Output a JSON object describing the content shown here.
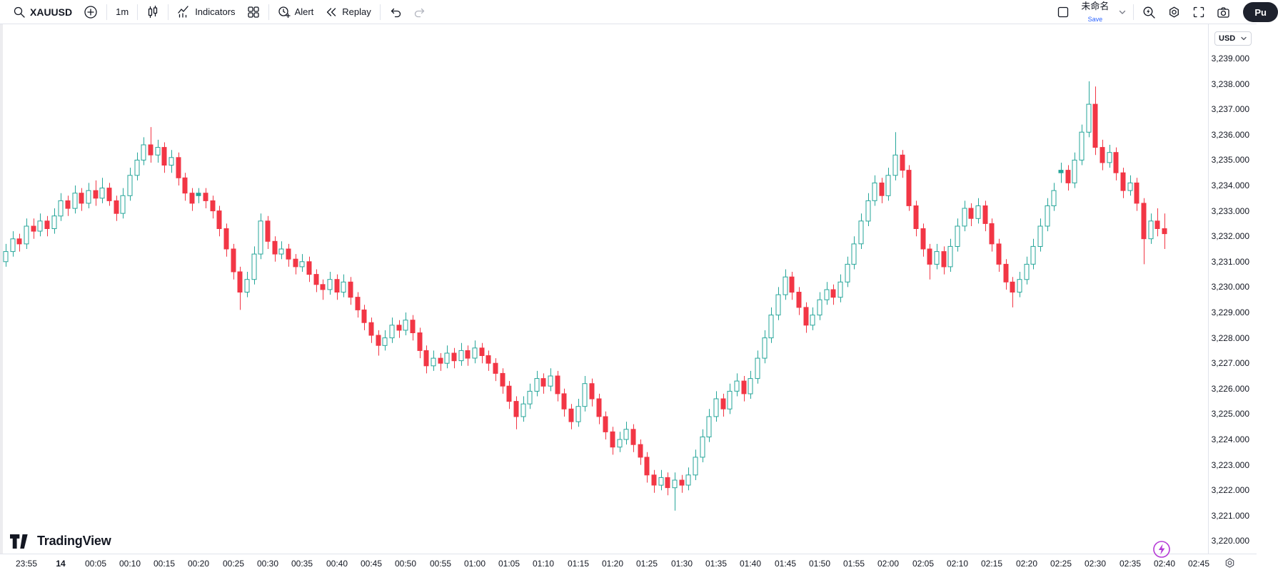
{
  "toolbar": {
    "symbol": "XAUUSD",
    "interval": "1m",
    "indicators_label": "Indicators",
    "alert_label": "Alert",
    "replay_label": "Replay",
    "layout_name": "未命名",
    "save_label": "Save",
    "publish_label": "Pu",
    "left_icons": [
      "search-icon",
      "plus-circle-icon",
      "candle-style-icon",
      "indicators-icon",
      "grid-layout-icon",
      "alert-clock-icon",
      "replay-icon",
      "undo-icon",
      "redo-icon"
    ],
    "right_icons": [
      "square-icon",
      "chevron-down-icon",
      "quick-search-icon",
      "gear-icon",
      "fullscreen-icon",
      "camera-icon"
    ]
  },
  "price_axis": {
    "currency": "USD",
    "labels": [
      "3,239.000",
      "3,238.000",
      "3,237.000",
      "3,236.000",
      "3,235.000",
      "3,234.000",
      "3,233.000",
      "3,232.000",
      "3,231.000",
      "3,230.000",
      "3,229.000",
      "3,228.000",
      "3,227.000",
      "3,226.000",
      "3,225.000",
      "3,224.000",
      "3,223.000",
      "3,222.000",
      "3,221.000",
      "3,220.000"
    ]
  },
  "time_axis": {
    "labels": [
      {
        "text": "23:55",
        "offset": 3,
        "bold": false
      },
      {
        "text": "14",
        "offset": 8,
        "bold": true
      },
      {
        "text": "00:05",
        "offset": 13,
        "bold": false
      },
      {
        "text": "00:10",
        "offset": 18,
        "bold": false
      },
      {
        "text": "00:15",
        "offset": 23,
        "bold": false
      },
      {
        "text": "00:20",
        "offset": 28,
        "bold": false
      },
      {
        "text": "00:25",
        "offset": 33,
        "bold": false
      },
      {
        "text": "00:30",
        "offset": 38,
        "bold": false
      },
      {
        "text": "00:35",
        "offset": 43,
        "bold": false
      },
      {
        "text": "00:40",
        "offset": 48,
        "bold": false
      },
      {
        "text": "00:45",
        "offset": 53,
        "bold": false
      },
      {
        "text": "00:50",
        "offset": 58,
        "bold": false
      },
      {
        "text": "00:55",
        "offset": 63,
        "bold": false
      },
      {
        "text": "01:00",
        "offset": 68,
        "bold": false
      },
      {
        "text": "01:05",
        "offset": 73,
        "bold": false
      },
      {
        "text": "01:10",
        "offset": 78,
        "bold": false
      },
      {
        "text": "01:15",
        "offset": 83,
        "bold": false
      },
      {
        "text": "01:20",
        "offset": 88,
        "bold": false
      },
      {
        "text": "01:25",
        "offset": 93,
        "bold": false
      },
      {
        "text": "01:30",
        "offset": 98,
        "bold": false
      },
      {
        "text": "01:35",
        "offset": 103,
        "bold": false
      },
      {
        "text": "01:40",
        "offset": 108,
        "bold": false
      },
      {
        "text": "01:45",
        "offset": 113,
        "bold": false
      },
      {
        "text": "01:50",
        "offset": 118,
        "bold": false
      },
      {
        "text": "01:55",
        "offset": 123,
        "bold": false
      },
      {
        "text": "02:00",
        "offset": 128,
        "bold": false
      },
      {
        "text": "02:05",
        "offset": 133,
        "bold": false
      },
      {
        "text": "02:10",
        "offset": 138,
        "bold": false
      },
      {
        "text": "02:15",
        "offset": 143,
        "bold": false
      },
      {
        "text": "02:20",
        "offset": 148,
        "bold": false
      },
      {
        "text": "02:25",
        "offset": 153,
        "bold": false
      },
      {
        "text": "02:30",
        "offset": 158,
        "bold": false
      },
      {
        "text": "02:35",
        "offset": 163,
        "bold": false
      },
      {
        "text": "02:40",
        "offset": 168,
        "bold": false
      },
      {
        "text": "02:45",
        "offset": 173,
        "bold": false
      }
    ]
  },
  "footer": {
    "brand": "TradingView"
  },
  "colors": {
    "up": "#26a69a",
    "down": "#f23645",
    "accent_blue": "#2962ff",
    "purple": "#b53ad6",
    "text": "#131722",
    "muted": "#b2b5be",
    "border": "#e0e3eb"
  },
  "chart_data": {
    "type": "candlestick",
    "symbol": "XAUUSD",
    "interval": "1m",
    "start_time": "23:52",
    "ylim": [
      3219.5,
      3240.5
    ],
    "y_tick_step": 1.0,
    "grid": false,
    "candles": [
      [
        3231.0,
        3231.7,
        3230.8,
        3231.4
      ],
      [
        3231.4,
        3232.2,
        3231.2,
        3231.9
      ],
      [
        3231.9,
        3232.1,
        3231.4,
        3231.7
      ],
      [
        3231.7,
        3232.7,
        3231.5,
        3232.4
      ],
      [
        3232.4,
        3232.7,
        3231.9,
        3232.2
      ],
      [
        3232.2,
        3232.9,
        3232.0,
        3232.6
      ],
      [
        3232.6,
        3232.8,
        3232.0,
        3232.3
      ],
      [
        3232.3,
        3233.1,
        3232.1,
        3232.8
      ],
      [
        3232.8,
        3233.7,
        3232.6,
        3233.4
      ],
      [
        3233.4,
        3233.6,
        3232.8,
        3233.1
      ],
      [
        3233.1,
        3234.0,
        3232.9,
        3233.7
      ],
      [
        3233.7,
        3233.9,
        3233.0,
        3233.3
      ],
      [
        3233.3,
        3234.1,
        3233.1,
        3233.8
      ],
      [
        3233.8,
        3234.2,
        3233.2,
        3233.5
      ],
      [
        3233.5,
        3234.3,
        3233.3,
        3233.9
      ],
      [
        3233.9,
        3234.1,
        3233.2,
        3233.4
      ],
      [
        3233.4,
        3233.6,
        3232.6,
        3232.9
      ],
      [
        3232.9,
        3233.9,
        3232.7,
        3233.6
      ],
      [
        3233.6,
        3234.7,
        3233.4,
        3234.4
      ],
      [
        3234.4,
        3235.3,
        3234.2,
        3235.0
      ],
      [
        3235.0,
        3235.9,
        3234.8,
        3235.6
      ],
      [
        3235.6,
        3236.3,
        3234.9,
        3235.2
      ],
      [
        3235.2,
        3235.8,
        3234.9,
        3235.5
      ],
      [
        3235.5,
        3235.7,
        3234.5,
        3234.8
      ],
      [
        3234.8,
        3235.4,
        3234.5,
        3235.1
      ],
      [
        3235.1,
        3235.3,
        3234.0,
        3234.3
      ],
      [
        3234.3,
        3234.5,
        3233.4,
        3233.7
      ],
      [
        3233.7,
        3233.9,
        3233.0,
        3233.3
      ],
      [
        3233.6,
        3233.9,
        3233.3,
        3233.7
      ],
      [
        3233.7,
        3233.9,
        3233.1,
        3233.4
      ],
      [
        3233.4,
        3233.6,
        3232.7,
        3233.0
      ],
      [
        3233.0,
        3233.2,
        3232.0,
        3232.3
      ],
      [
        3232.3,
        3232.5,
        3231.2,
        3231.5
      ],
      [
        3231.5,
        3231.7,
        3230.3,
        3230.6
      ],
      [
        3230.6,
        3230.8,
        3229.1,
        3229.8
      ],
      [
        3229.8,
        3230.6,
        3229.6,
        3230.3
      ],
      [
        3230.3,
        3231.6,
        3230.1,
        3231.3
      ],
      [
        3231.3,
        3232.9,
        3231.1,
        3232.6
      ],
      [
        3232.6,
        3232.8,
        3231.5,
        3231.8
      ],
      [
        3231.8,
        3232.0,
        3231.0,
        3231.3
      ],
      [
        3231.3,
        3231.8,
        3231.1,
        3231.5
      ],
      [
        3231.5,
        3231.7,
        3230.8,
        3231.1
      ],
      [
        3231.1,
        3231.3,
        3230.5,
        3230.8
      ],
      [
        3230.8,
        3231.3,
        3230.6,
        3231.0
      ],
      [
        3231.0,
        3231.2,
        3230.2,
        3230.5
      ],
      [
        3230.5,
        3230.7,
        3229.8,
        3230.1
      ],
      [
        3230.1,
        3230.3,
        3229.5,
        3229.9
      ],
      [
        3229.9,
        3230.6,
        3229.7,
        3230.3
      ],
      [
        3230.3,
        3230.5,
        3229.5,
        3229.8
      ],
      [
        3229.8,
        3230.5,
        3229.6,
        3230.2
      ],
      [
        3230.2,
        3230.4,
        3229.3,
        3229.6
      ],
      [
        3229.6,
        3229.8,
        3228.8,
        3229.1
      ],
      [
        3229.1,
        3229.3,
        3228.3,
        3228.6
      ],
      [
        3228.6,
        3228.8,
        3227.8,
        3228.1
      ],
      [
        3228.1,
        3228.3,
        3227.3,
        3227.7
      ],
      [
        3227.7,
        3228.3,
        3227.5,
        3228.0
      ],
      [
        3228.0,
        3228.8,
        3227.8,
        3228.5
      ],
      [
        3228.5,
        3228.7,
        3228.0,
        3228.3
      ],
      [
        3228.3,
        3229.0,
        3228.1,
        3228.7
      ],
      [
        3228.7,
        3228.9,
        3227.9,
        3228.2
      ],
      [
        3228.2,
        3228.4,
        3227.2,
        3227.5
      ],
      [
        3227.5,
        3227.7,
        3226.6,
        3226.9
      ],
      [
        3226.9,
        3227.5,
        3226.7,
        3227.2
      ],
      [
        3227.2,
        3227.4,
        3226.7,
        3227.0
      ],
      [
        3227.0,
        3227.7,
        3226.8,
        3227.4
      ],
      [
        3227.4,
        3227.6,
        3226.8,
        3227.1
      ],
      [
        3227.1,
        3227.8,
        3226.9,
        3227.5
      ],
      [
        3227.5,
        3227.7,
        3226.9,
        3227.2
      ],
      [
        3227.2,
        3227.9,
        3227.0,
        3227.6
      ],
      [
        3227.6,
        3227.8,
        3227.0,
        3227.3
      ],
      [
        3227.3,
        3227.5,
        3226.7,
        3227.0
      ],
      [
        3227.0,
        3227.2,
        3226.3,
        3226.6
      ],
      [
        3226.6,
        3226.8,
        3225.8,
        3226.1
      ],
      [
        3226.1,
        3226.3,
        3225.2,
        3225.5
      ],
      [
        3225.5,
        3225.7,
        3224.4,
        3224.9
      ],
      [
        3224.9,
        3225.7,
        3224.7,
        3225.4
      ],
      [
        3225.4,
        3226.2,
        3225.2,
        3225.9
      ],
      [
        3225.9,
        3226.7,
        3225.7,
        3226.4
      ],
      [
        3226.4,
        3226.6,
        3225.8,
        3226.1
      ],
      [
        3226.1,
        3226.8,
        3225.9,
        3226.5
      ],
      [
        3226.5,
        3226.7,
        3225.5,
        3225.8
      ],
      [
        3225.8,
        3226.0,
        3224.9,
        3225.2
      ],
      [
        3225.2,
        3225.4,
        3224.4,
        3224.7
      ],
      [
        3224.7,
        3225.6,
        3224.5,
        3225.3
      ],
      [
        3225.3,
        3226.5,
        3225.1,
        3226.2
      ],
      [
        3226.2,
        3226.4,
        3225.3,
        3225.6
      ],
      [
        3225.6,
        3225.8,
        3224.6,
        3224.9
      ],
      [
        3224.9,
        3225.1,
        3224.0,
        3224.3
      ],
      [
        3224.3,
        3224.5,
        3223.4,
        3223.7
      ],
      [
        3223.7,
        3224.3,
        3223.5,
        3224.0
      ],
      [
        3224.0,
        3224.7,
        3223.8,
        3224.4
      ],
      [
        3224.4,
        3224.6,
        3223.5,
        3223.8
      ],
      [
        3223.8,
        3224.0,
        3223.0,
        3223.3
      ],
      [
        3223.3,
        3223.5,
        3222.3,
        3222.6
      ],
      [
        3222.6,
        3222.8,
        3221.9,
        3222.2
      ],
      [
        3222.2,
        3222.8,
        3222.0,
        3222.5
      ],
      [
        3222.5,
        3222.7,
        3221.8,
        3222.1
      ],
      [
        3222.1,
        3222.7,
        3221.2,
        3222.4
      ],
      [
        3222.4,
        3222.6,
        3221.9,
        3222.2
      ],
      [
        3222.2,
        3222.9,
        3222.0,
        3222.6
      ],
      [
        3222.6,
        3223.6,
        3222.4,
        3223.3
      ],
      [
        3223.3,
        3224.4,
        3223.1,
        3224.1
      ],
      [
        3224.1,
        3225.2,
        3223.9,
        3224.9
      ],
      [
        3224.9,
        3225.9,
        3224.7,
        3225.6
      ],
      [
        3225.6,
        3225.8,
        3224.9,
        3225.2
      ],
      [
        3225.2,
        3226.2,
        3225.0,
        3225.9
      ],
      [
        3225.9,
        3226.6,
        3225.7,
        3226.3
      ],
      [
        3226.3,
        3226.5,
        3225.5,
        3225.8
      ],
      [
        3225.8,
        3226.7,
        3225.6,
        3226.4
      ],
      [
        3226.4,
        3227.5,
        3226.2,
        3227.2
      ],
      [
        3227.2,
        3228.3,
        3227.0,
        3228.0
      ],
      [
        3228.0,
        3229.2,
        3227.8,
        3228.9
      ],
      [
        3228.9,
        3230.0,
        3228.7,
        3229.7
      ],
      [
        3229.7,
        3230.7,
        3229.5,
        3230.4
      ],
      [
        3230.4,
        3230.6,
        3229.5,
        3229.8
      ],
      [
        3229.8,
        3230.0,
        3228.9,
        3229.2
      ],
      [
        3229.2,
        3229.4,
        3228.2,
        3228.5
      ],
      [
        3228.5,
        3229.2,
        3228.3,
        3228.9
      ],
      [
        3228.9,
        3229.8,
        3228.7,
        3229.5
      ],
      [
        3229.5,
        3230.2,
        3229.3,
        3229.9
      ],
      [
        3229.9,
        3230.1,
        3229.3,
        3229.6
      ],
      [
        3229.6,
        3230.5,
        3229.4,
        3230.2
      ],
      [
        3230.2,
        3231.2,
        3230.0,
        3230.9
      ],
      [
        3230.9,
        3232.0,
        3230.7,
        3231.7
      ],
      [
        3231.7,
        3232.9,
        3231.5,
        3232.6
      ],
      [
        3232.6,
        3233.7,
        3232.4,
        3233.4
      ],
      [
        3233.4,
        3234.4,
        3233.2,
        3234.1
      ],
      [
        3234.1,
        3234.3,
        3233.3,
        3233.6
      ],
      [
        3233.6,
        3234.7,
        3233.4,
        3234.4
      ],
      [
        3234.4,
        3236.1,
        3234.2,
        3235.2
      ],
      [
        3235.2,
        3235.4,
        3234.3,
        3234.6
      ],
      [
        3234.6,
        3234.8,
        3233.0,
        3233.2
      ],
      [
        3233.2,
        3233.4,
        3232.0,
        3232.3
      ],
      [
        3232.3,
        3232.5,
        3231.2,
        3231.5
      ],
      [
        3231.5,
        3231.7,
        3230.3,
        3230.9
      ],
      [
        3230.9,
        3231.7,
        3230.7,
        3231.4
      ],
      [
        3231.4,
        3231.6,
        3230.5,
        3230.8
      ],
      [
        3230.8,
        3231.9,
        3230.6,
        3231.6
      ],
      [
        3231.6,
        3232.7,
        3231.4,
        3232.4
      ],
      [
        3232.4,
        3233.4,
        3232.2,
        3233.1
      ],
      [
        3233.1,
        3233.3,
        3232.4,
        3232.7
      ],
      [
        3232.7,
        3233.5,
        3232.5,
        3233.2
      ],
      [
        3233.2,
        3233.4,
        3232.2,
        3232.5
      ],
      [
        3232.5,
        3232.7,
        3231.4,
        3231.7
      ],
      [
        3231.7,
        3231.9,
        3230.6,
        3230.9
      ],
      [
        3230.9,
        3231.1,
        3229.9,
        3230.2
      ],
      [
        3230.2,
        3230.4,
        3229.2,
        3229.8
      ],
      [
        3229.8,
        3230.6,
        3229.6,
        3230.3
      ],
      [
        3230.3,
        3231.2,
        3230.1,
        3230.9
      ],
      [
        3230.9,
        3231.9,
        3230.7,
        3231.6
      ],
      [
        3231.6,
        3232.7,
        3231.4,
        3232.4
      ],
      [
        3232.4,
        3233.5,
        3232.2,
        3233.2
      ],
      [
        3233.2,
        3234.1,
        3233.0,
        3233.8
      ],
      [
        3234.5,
        3234.9,
        3234.1,
        3234.6
      ],
      [
        3234.6,
        3234.8,
        3233.8,
        3234.1
      ],
      [
        3234.1,
        3235.3,
        3233.9,
        3235.0
      ],
      [
        3235.0,
        3236.4,
        3234.8,
        3236.1
      ],
      [
        3236.1,
        3238.1,
        3235.9,
        3237.2
      ],
      [
        3237.2,
        3237.9,
        3235.2,
        3235.5
      ],
      [
        3235.5,
        3235.8,
        3234.6,
        3234.9
      ],
      [
        3234.9,
        3235.6,
        3234.7,
        3235.3
      ],
      [
        3235.3,
        3235.5,
        3234.2,
        3234.5
      ],
      [
        3234.5,
        3234.7,
        3233.5,
        3233.8
      ],
      [
        3233.8,
        3234.4,
        3233.6,
        3234.1
      ],
      [
        3234.1,
        3234.3,
        3233.0,
        3233.3
      ],
      [
        3233.3,
        3233.5,
        3230.9,
        3231.9
      ],
      [
        3231.9,
        3232.9,
        3231.7,
        3232.6
      ],
      [
        3232.6,
        3233.1,
        3232.0,
        3232.3
      ],
      [
        3232.3,
        3232.9,
        3231.5,
        3232.1
      ]
    ]
  }
}
